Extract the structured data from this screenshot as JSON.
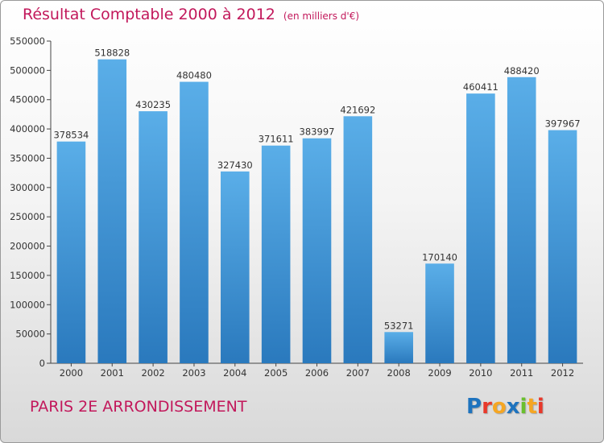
{
  "header": {
    "title": "Résultat Comptable 2000 à 2012",
    "unit_note": "(en milliers d'€)"
  },
  "footer": {
    "location": "PARIS 2E  ARRONDISSEMENT",
    "logo_letters": [
      "P",
      "r",
      "o",
      "x",
      "i",
      "t",
      "i"
    ],
    "logo_colors": [
      "#1e73be",
      "#e8392b",
      "#f5a623",
      "#1e73be",
      "#6abf2e",
      "#f5a623",
      "#e8392b"
    ]
  },
  "chart_data": {
    "type": "bar",
    "title": "Résultat Comptable 2000 à 2012",
    "xlabel": "",
    "ylabel": "",
    "categories": [
      "2000",
      "2001",
      "2002",
      "2003",
      "2004",
      "2005",
      "2006",
      "2007",
      "2008",
      "2009",
      "2010",
      "2011",
      "2012"
    ],
    "values": [
      378534,
      518828,
      430235,
      480480,
      327430,
      371611,
      383997,
      421692,
      53271,
      170140,
      460411,
      488420,
      397967
    ],
    "value_labels": [
      "378534",
      "518828",
      "430235",
      "480480",
      "327430",
      "371611",
      "383997",
      "421692",
      "53271",
      "170140",
      "460411",
      "488420",
      "397967"
    ],
    "ylim": [
      0,
      550000
    ],
    "yticks": [
      0,
      50000,
      100000,
      150000,
      200000,
      250000,
      300000,
      350000,
      400000,
      450000,
      500000,
      550000
    ],
    "ytick_labels": [
      "0",
      "50000",
      "100000",
      "150000",
      "200000",
      "250000",
      "300000",
      "350000",
      "400000",
      "450000",
      "500000",
      "550000"
    ],
    "grid": false,
    "bar_color_top": "#5aaee8",
    "bar_color_bottom": "#2a79bd"
  }
}
